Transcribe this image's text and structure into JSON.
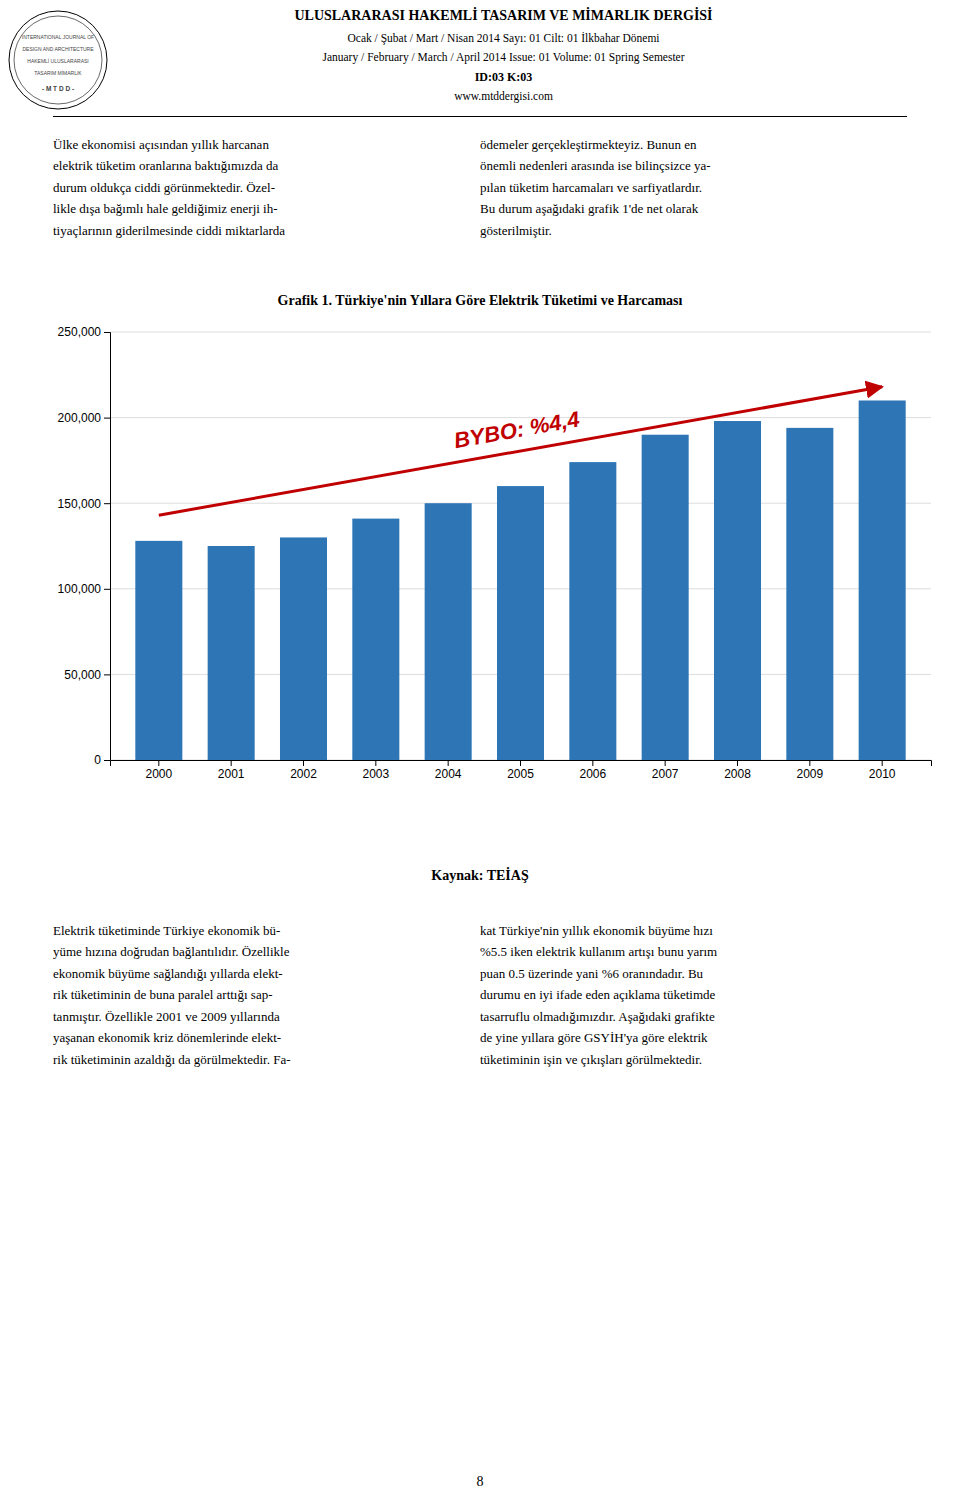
{
  "title_main": "ULUSLARARASI HAKEMLİ TASARIM VE MİMARLIK DERGİSİ",
  "subtitle1": "Ocak / Şubat / Mart / Nisan 2014 Sayı: 01 Cilt: 01 İlkbahar Dönemi",
  "subtitle2": "January / February / March / April 2014 Issue: 01 Volume: 01 Spring Semester",
  "subtitle3": "ID:03 K:03",
  "subtitle4": "www.mtddergisi.com",
  "logo_text_lines": [
    "INTERNATIONAL JOURNAL OF",
    "DESIGN AND ARCHITECTURE",
    "HAKEMLİ ULUSLARARASI",
    "TASARIM MİMARLIK",
    "- M T D D -"
  ],
  "para1_left": "Ülke ekonomisi açısından yıllık harcanan\nelektrik tüketim oranlarına baktığımızda da\ndurum oldukça ciddi görünmektedir. Özel-\nlikle dışa bağımlı hale geldiğimiz enerji ih-\ntiyaçlarının giderilmesinde ciddi miktarlarda",
  "para1_right": "ödemeler gerçekleştirmekteyiz. Bunun en\nönemli nedenleri arasında ise bilinçsizce ya-\npılan tüketim harcamaları ve sarfiyatlardır.\nBu durum aşağıdaki grafik 1'de net olarak\ngösterilmiştir.",
  "source_label": "Kaynak: TEİAŞ",
  "para2_left": "Elektrik tüketiminde Türkiye ekonomik bü-\nyüme hızına doğrudan bağlantılıdır. Özellikle\nekonomik büyüme sağlandığı yıllarda elekt-\nrik tüketiminin de buna paralel arttığı sap-\ntanmıştır. Özellikle 2001 ve 2009 yıllarında\nyaşanan ekonomik kriz dönemlerinde elekt-\nrik tüketiminin azaldığı da görülmektedir. Fa-",
  "para2_right": "kat Türkiye'nin yıllık ekonomik büyüme hızı\n%5.5 iken elektrik kullanım artışı bunu yarım\npuan 0.5 üzerinde yani %6 oranındadır. Bu\ndurumu en iyi ifade eden açıklama tüketimde\ntasarruflu olmadığımızdır. Aşağıdaki grafikte\nde yine yıllara göre GSYİH'ya göre elektrik\ntüketiminin işin ve çıkışları görülmektedir.",
  "page_number": "8",
  "chart_data": {
    "type": "bar",
    "title": "Grafik 1. Türkiye'nin Yıllara Göre Elektrik Tüketimi ve Harcaması",
    "categories": [
      "2000",
      "2001",
      "2002",
      "2003",
      "2004",
      "2005",
      "2006",
      "2007",
      "2008",
      "2009",
      "2010"
    ],
    "values": [
      128000,
      125000,
      130000,
      141000,
      150000,
      160000,
      174000,
      190000,
      198000,
      194000,
      210000
    ],
    "color": "#2E75B6",
    "ylim": [
      0,
      250000
    ],
    "yticks": [
      0,
      {
        "value": 50000,
        "label": "50,000"
      },
      {
        "value": 100000,
        "label": "100,000"
      },
      {
        "value": 150000,
        "label": "150,000"
      },
      {
        "value": 200000,
        "label": "200,000"
      },
      {
        "value": 250000,
        "label": "250,000"
      }
    ],
    "grid": true,
    "annotations": [
      {
        "text": "BYBO: %4,4",
        "color": "#C00000",
        "x_start": "2000",
        "y_start": 143000,
        "x_end": "2010",
        "y_end": 218000
      }
    ]
  }
}
